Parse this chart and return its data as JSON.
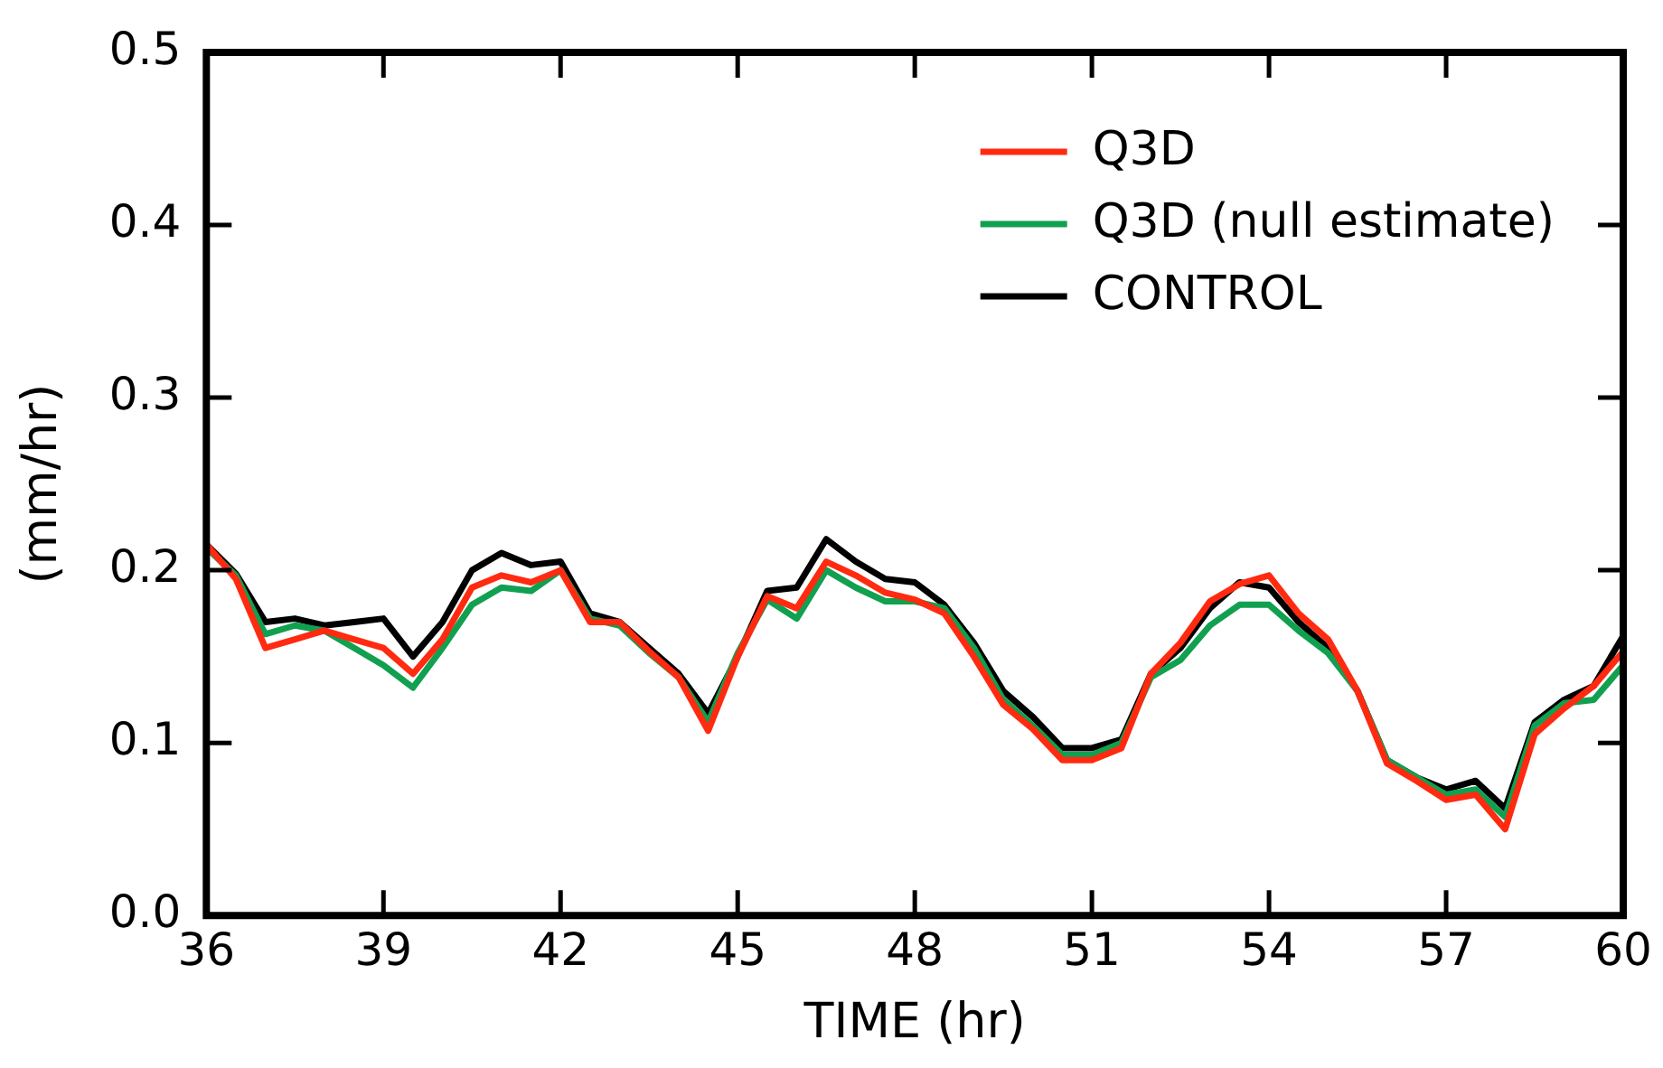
{
  "chart_data": {
    "type": "line",
    "xlabel": "TIME (hr)",
    "ylabel": "(mm/hr)",
    "x": [
      36,
      36.5,
      37,
      37.5,
      38,
      38.5,
      39,
      39.5,
      40,
      40.5,
      41,
      41.5,
      42,
      42.5,
      43,
      43.5,
      44,
      44.5,
      45,
      45.5,
      46,
      46.5,
      47,
      47.5,
      48,
      48.5,
      49,
      49.5,
      50,
      50.5,
      51,
      51.5,
      52,
      52.5,
      53,
      53.5,
      54,
      54.5,
      55,
      55.5,
      56,
      56.5,
      57,
      57.5,
      58,
      58.5,
      59,
      59.5,
      60
    ],
    "series": [
      {
        "name": "Q3D",
        "color": "#ff2a10",
        "values": [
          0.215,
          0.195,
          0.155,
          0.16,
          0.165,
          0.16,
          0.155,
          0.14,
          0.16,
          0.19,
          0.197,
          0.193,
          0.2,
          0.17,
          0.17,
          0.153,
          0.138,
          0.107,
          0.15,
          0.185,
          0.178,
          0.205,
          0.197,
          0.187,
          0.183,
          0.175,
          0.15,
          0.122,
          0.108,
          0.09,
          0.09,
          0.097,
          0.14,
          0.158,
          0.182,
          0.192,
          0.197,
          0.175,
          0.16,
          0.13,
          0.088,
          0.078,
          0.067,
          0.07,
          0.05,
          0.105,
          0.12,
          0.133,
          0.153
        ]
      },
      {
        "name": "Q3D (null estimate)",
        "color": "#10a050",
        "values": [
          0.213,
          0.197,
          0.163,
          0.168,
          0.165,
          0.155,
          0.145,
          0.132,
          0.155,
          0.18,
          0.19,
          0.188,
          0.2,
          0.172,
          0.168,
          0.152,
          0.138,
          0.112,
          0.152,
          0.183,
          0.172,
          0.2,
          0.19,
          0.182,
          0.182,
          0.178,
          0.155,
          0.125,
          0.11,
          0.093,
          0.093,
          0.1,
          0.138,
          0.148,
          0.168,
          0.18,
          0.18,
          0.165,
          0.152,
          0.13,
          0.09,
          0.08,
          0.07,
          0.073,
          0.057,
          0.11,
          0.123,
          0.125,
          0.145
        ]
      },
      {
        "name": "CONTROL",
        "color": "#000000",
        "values": [
          0.215,
          0.198,
          0.17,
          0.172,
          0.168,
          0.17,
          0.172,
          0.15,
          0.17,
          0.2,
          0.21,
          0.203,
          0.205,
          0.175,
          0.17,
          0.155,
          0.14,
          0.117,
          0.15,
          0.188,
          0.19,
          0.218,
          0.205,
          0.195,
          0.193,
          0.18,
          0.158,
          0.13,
          0.115,
          0.097,
          0.097,
          0.102,
          0.14,
          0.155,
          0.178,
          0.193,
          0.19,
          0.17,
          0.155,
          0.13,
          0.09,
          0.08,
          0.073,
          0.078,
          0.062,
          0.112,
          0.125,
          0.133,
          0.162
        ]
      }
    ],
    "xlim": [
      36,
      60
    ],
    "xticks": [
      36,
      39,
      42,
      45,
      48,
      51,
      54,
      57,
      60
    ],
    "ylim": [
      0,
      0.5
    ],
    "yticks": [
      {
        "value": 0,
        "label": "0.0"
      },
      {
        "value": 0.1,
        "label": "0.1"
      },
      {
        "value": 0.2,
        "label": "0.2"
      },
      {
        "value": 0.3,
        "label": "0.3"
      },
      {
        "value": 0.4,
        "label": "0.4"
      },
      {
        "value": 0.5,
        "label": "0.5"
      }
    ],
    "grid": false,
    "legend": "top right",
    "marker": "none",
    "line_style": "solid"
  }
}
